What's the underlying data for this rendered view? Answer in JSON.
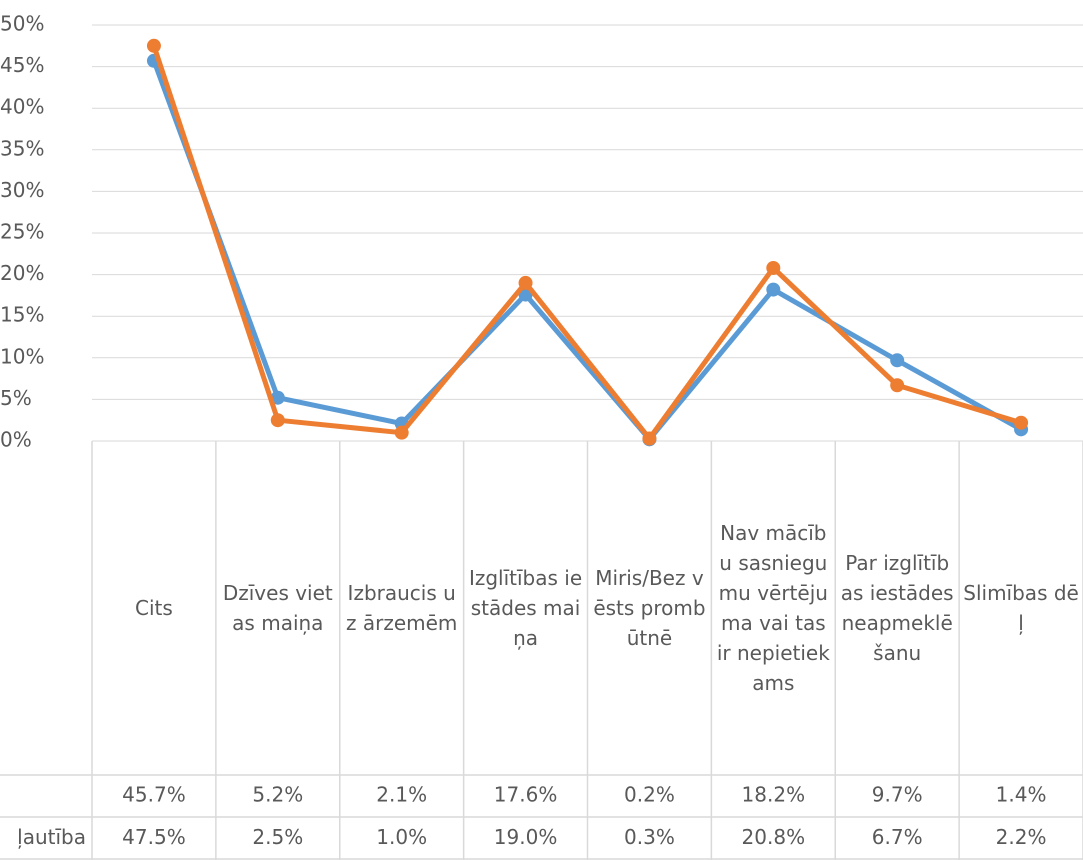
{
  "chart_data": {
    "type": "line",
    "categories": [
      "Cits",
      "Dzīves vietas maiņa",
      "Izbraucis uz ārzemēm",
      "Izglītības iestādes maiņa",
      "Miris/Bez vēsts prombūtnē",
      "Nav mācību sasniegumu vērtējuma vai tas ir nepietiekams",
      "Par izglītības iestādes neapmeklēšanu",
      "Slimības dēļ"
    ],
    "series": [
      {
        "color": "#5b9bd5",
        "values": [
          45.7,
          5.2,
          2.1,
          17.6,
          0.2,
          18.2,
          9.7,
          1.4
        ],
        "value_labels": [
          "45.7%",
          "5.2%",
          "2.1%",
          "17.6%",
          "0.2%",
          "18.2%",
          "9.7%",
          "1.4%"
        ]
      },
      {
        "name": "ļautība",
        "color": "#ed7d31",
        "values": [
          47.5,
          2.5,
          1.0,
          19.0,
          0.3,
          20.8,
          6.7,
          2.2
        ],
        "value_labels": [
          "47.5%",
          "2.5%",
          "1.0%",
          "19.0%",
          "0.3%",
          "20.8%",
          "6.7%",
          "2.2%"
        ]
      }
    ],
    "ylim": [
      0,
      50
    ],
    "yticks": [
      {
        "value": 0,
        "label": "0%"
      },
      {
        "value": 5,
        "label": "5%"
      },
      {
        "value": 10,
        "label": "10%"
      },
      {
        "value": 15,
        "label": "15%"
      },
      {
        "value": 20,
        "label": "20%"
      },
      {
        "value": 25,
        "label": "25%"
      },
      {
        "value": 30,
        "label": "30%"
      },
      {
        "value": 35,
        "label": "35%"
      },
      {
        "value": 40,
        "label": "40%"
      },
      {
        "value": 45,
        "label": "45%"
      },
      {
        "value": 50,
        "label": "50%"
      }
    ],
    "grid": true
  }
}
